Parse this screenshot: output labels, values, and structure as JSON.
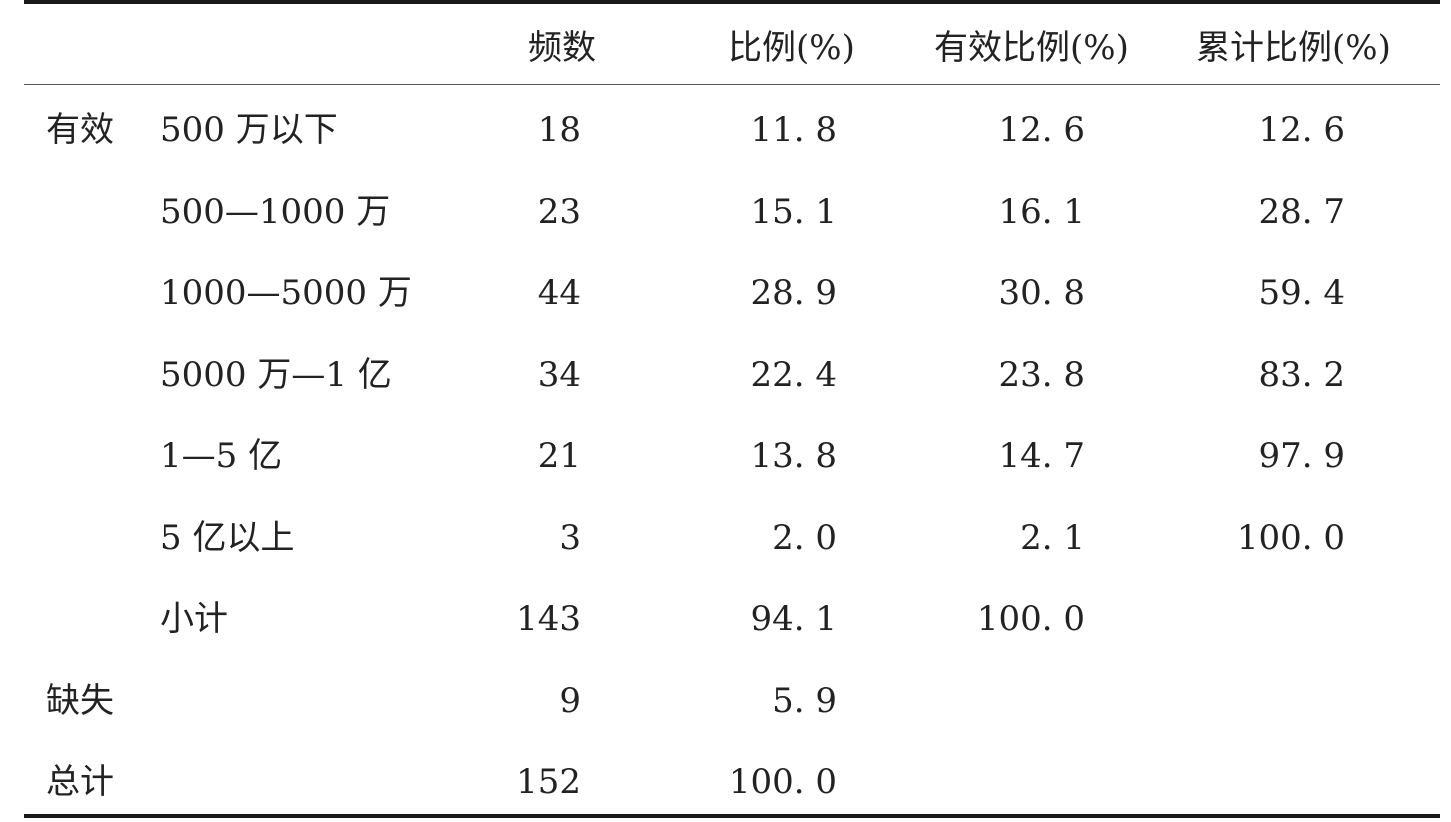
{
  "table": {
    "headers": {
      "freq": "频数",
      "pct": "比例(%)",
      "valid_pct": "有效比例(%)",
      "cum_pct": "累计比例(%)"
    },
    "rows": [
      {
        "group": "有效",
        "label": "500 万以下",
        "freq": "18",
        "pct": "11. 8",
        "valid_pct": "12. 6",
        "cum_pct": "12. 6"
      },
      {
        "group": "",
        "label": "500—1000 万",
        "freq": "23",
        "pct": "15. 1",
        "valid_pct": "16. 1",
        "cum_pct": "28. 7"
      },
      {
        "group": "",
        "label": "1000—5000 万",
        "freq": "44",
        "pct": "28. 9",
        "valid_pct": "30. 8",
        "cum_pct": "59. 4"
      },
      {
        "group": "",
        "label": "5000 万—1 亿",
        "freq": "34",
        "pct": "22. 4",
        "valid_pct": "23. 8",
        "cum_pct": "83. 2"
      },
      {
        "group": "",
        "label": "1—5 亿",
        "freq": "21",
        "pct": "13. 8",
        "valid_pct": "14. 7",
        "cum_pct": "97. 9"
      },
      {
        "group": "",
        "label": "5 亿以上",
        "freq": "3",
        "pct": "2. 0",
        "valid_pct": "2. 1",
        "cum_pct": "100. 0"
      },
      {
        "group": "",
        "label": "小计",
        "freq": "143",
        "pct": "94. 1",
        "valid_pct": "100. 0",
        "cum_pct": ""
      },
      {
        "group": "缺失",
        "label": "",
        "freq": "9",
        "pct": "5. 9",
        "valid_pct": "",
        "cum_pct": ""
      },
      {
        "group": "总计",
        "label": "",
        "freq": "152",
        "pct": "100. 0",
        "valid_pct": "",
        "cum_pct": ""
      }
    ]
  }
}
